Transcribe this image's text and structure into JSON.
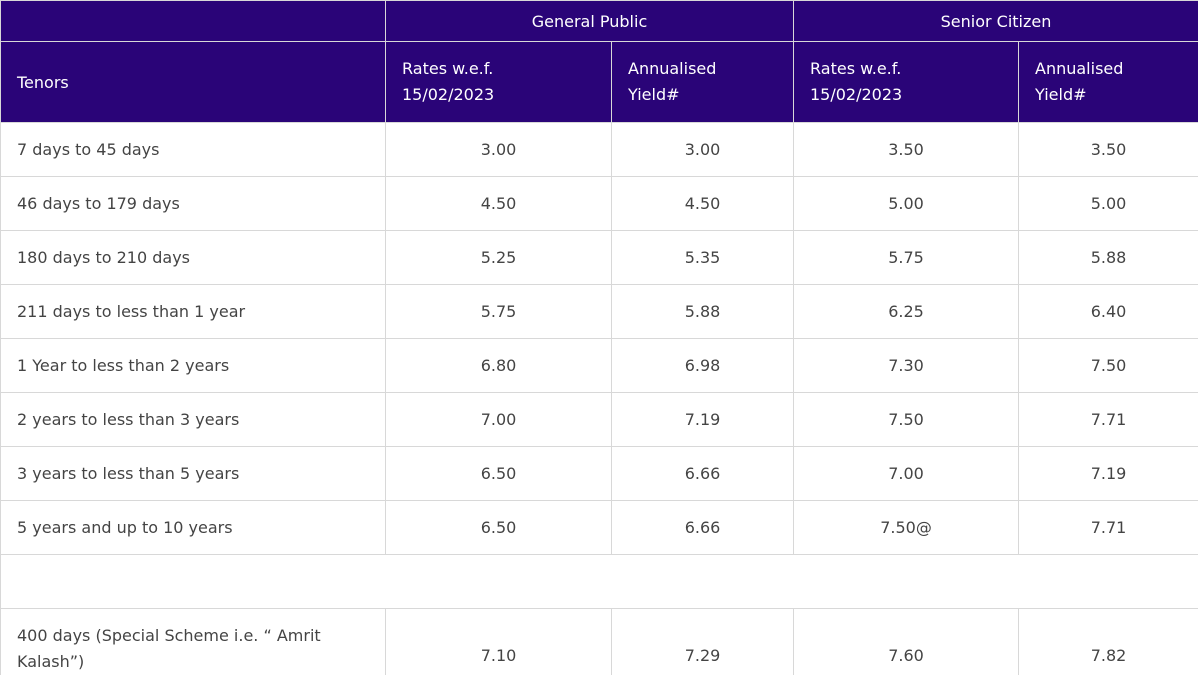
{
  "table": {
    "group_headers": [
      "General Public",
      "Senior Citizen"
    ],
    "columns": [
      "Tenors",
      "Rates w.e.f. 15/02/2023",
      "Annualised Yield#",
      "Rates w.e.f. 15/02/2023",
      "Annualised Yield#"
    ],
    "rows": [
      [
        "7 days to 45 days",
        "3.00",
        "3.00",
        "3.50",
        "3.50"
      ],
      [
        "46 days to 179 days",
        "4.50",
        "4.50",
        "5.00",
        "5.00"
      ],
      [
        "180 days to 210 days",
        "5.25",
        "5.35",
        "5.75",
        "5.88"
      ],
      [
        "211 days to less than 1 year",
        "5.75",
        "5.88",
        "6.25",
        "6.40"
      ],
      [
        "1 Year to less than 2 years",
        "6.80",
        "6.98",
        "7.30",
        "7.50"
      ],
      [
        "2 years to less than 3 years",
        "7.00",
        "7.19",
        "7.50",
        "7.71"
      ],
      [
        "3 years to less than 5 years",
        "6.50",
        "6.66",
        "7.00",
        "7.19"
      ],
      [
        "5 years and up to 10 years",
        "6.50",
        "6.66",
        "7.50@",
        "7.71"
      ]
    ],
    "special_rows": [
      [
        "400 days (Special Scheme i.e. “ Amrit Kalash”)",
        "7.10",
        "7.29",
        "7.60",
        "7.82"
      ]
    ]
  }
}
